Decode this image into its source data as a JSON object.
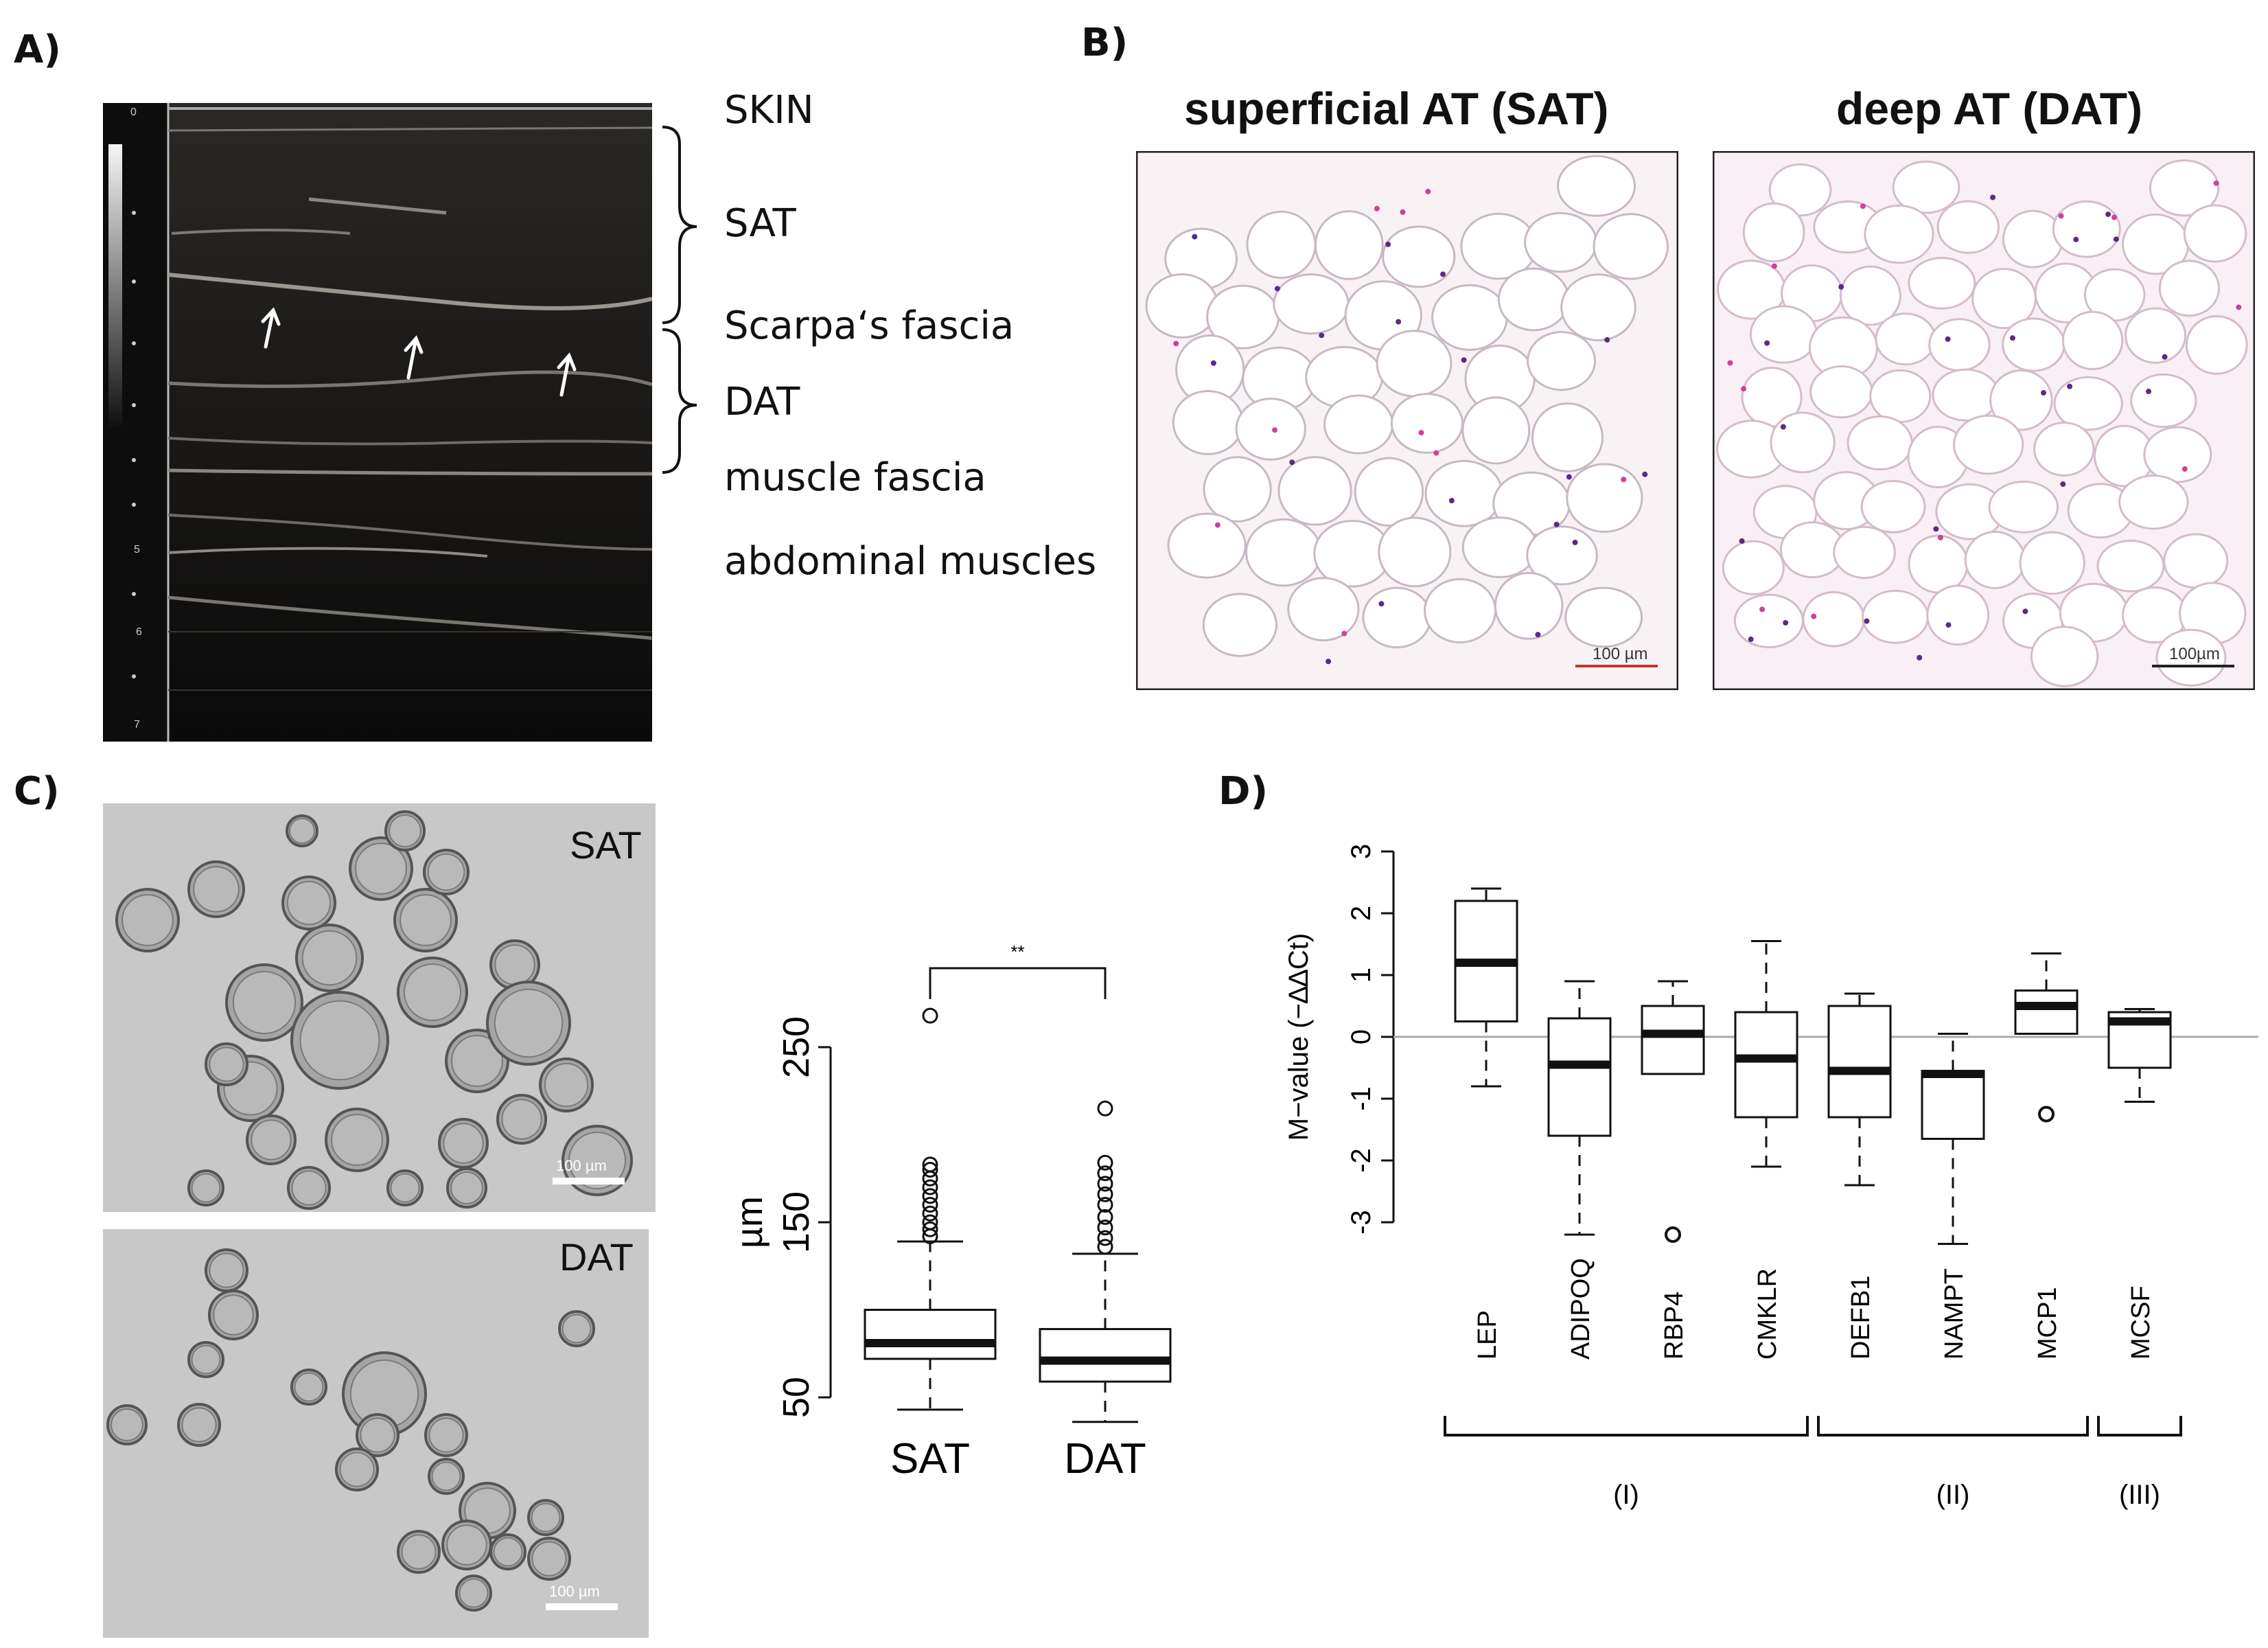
{
  "panels": {
    "A": {
      "label": "A)",
      "depth_ticks": [
        "0",
        "5",
        "6",
        "7"
      ],
      "structures": [
        "SKIN",
        "SAT",
        "Scarpa‘s fascia",
        "DAT",
        "muscle fascia",
        "abdominal muscles"
      ]
    },
    "B": {
      "label": "B)",
      "titles": [
        "superficial AT (SAT)",
        "deep AT (DAT)"
      ],
      "scalebars": [
        "100 µm",
        "100µm"
      ]
    },
    "C": {
      "label": "C)",
      "image_labels": [
        "SAT",
        "DAT"
      ],
      "scalebars": [
        "100 µm",
        "100 µm"
      ],
      "significance": "**"
    },
    "D": {
      "label": "D)",
      "group_labels": [
        "(I)",
        "(II)",
        "(III)"
      ]
    }
  },
  "chart_data": [
    {
      "type": "box",
      "panel": "C",
      "ylabel": "µm",
      "ylim": [
        50,
        250
      ],
      "yticks": [
        50,
        150,
        250
      ],
      "categories": [
        "SAT",
        "DAT"
      ],
      "boxes": [
        {
          "name": "SAT",
          "whisker_low": 43,
          "q1": 72,
          "median": 81,
          "q3": 100,
          "whisker_high": 139,
          "outliers": [
            142,
            146,
            150,
            155,
            160,
            165,
            170,
            175,
            180,
            183,
            268
          ]
        },
        {
          "name": "DAT",
          "whisker_low": 36,
          "q1": 59,
          "median": 71,
          "q3": 89,
          "whisker_high": 132,
          "outliers": [
            136,
            141,
            147,
            153,
            160,
            166,
            172,
            178,
            184,
            215
          ]
        }
      ]
    },
    {
      "type": "box",
      "panel": "D",
      "ylabel": "M−value (−∆∆Ct)",
      "ylim": [
        -3,
        3
      ],
      "yticks": [
        -3,
        -2,
        -1,
        0,
        1,
        2,
        3
      ],
      "categories": [
        "LEP",
        "ADIPOQ",
        "RBP4",
        "CMKLR",
        "DEFB1",
        "NAMPT",
        "MCP1",
        "MCSF"
      ],
      "groups": [
        {
          "label": "(I)",
          "members": [
            "LEP",
            "ADIPOQ",
            "RBP4",
            "CMKLR"
          ]
        },
        {
          "label": "(II)",
          "members": [
            "DEFB1",
            "NAMPT",
            "MCP1"
          ]
        },
        {
          "label": "(III)",
          "members": [
            "MCSF"
          ]
        }
      ],
      "boxes": [
        {
          "name": "LEP",
          "whisker_low": -0.8,
          "q1": 0.25,
          "median": 1.2,
          "q3": 2.2,
          "whisker_high": 2.4,
          "outliers": []
        },
        {
          "name": "ADIPOQ",
          "whisker_low": -3.2,
          "q1": -1.6,
          "median": -0.45,
          "q3": 0.3,
          "whisker_high": 0.9,
          "outliers": []
        },
        {
          "name": "RBP4",
          "whisker_low": -0.6,
          "q1": -0.6,
          "median": 0.05,
          "q3": 0.5,
          "whisker_high": 0.9,
          "outliers": [
            -3.2
          ]
        },
        {
          "name": "CMKLR",
          "whisker_low": -2.1,
          "q1": -1.3,
          "median": -0.35,
          "q3": 0.4,
          "whisker_high": 1.55,
          "outliers": []
        },
        {
          "name": "DEFB1",
          "whisker_low": -2.4,
          "q1": -1.3,
          "median": -0.55,
          "q3": 0.5,
          "whisker_high": 0.7,
          "outliers": []
        },
        {
          "name": "NAMPT",
          "whisker_low": -3.35,
          "q1": -1.65,
          "median": -0.6,
          "q3": -0.55,
          "whisker_high": 0.05,
          "outliers": []
        },
        {
          "name": "MCP1",
          "whisker_low": 0.05,
          "q1": 0.05,
          "median": 0.5,
          "q3": 0.75,
          "whisker_high": 1.35,
          "outliers": [
            -1.25
          ]
        },
        {
          "name": "MCSF",
          "whisker_low": -1.05,
          "q1": -0.5,
          "median": 0.25,
          "q3": 0.4,
          "whisker_high": 0.45,
          "outliers": []
        }
      ]
    }
  ]
}
